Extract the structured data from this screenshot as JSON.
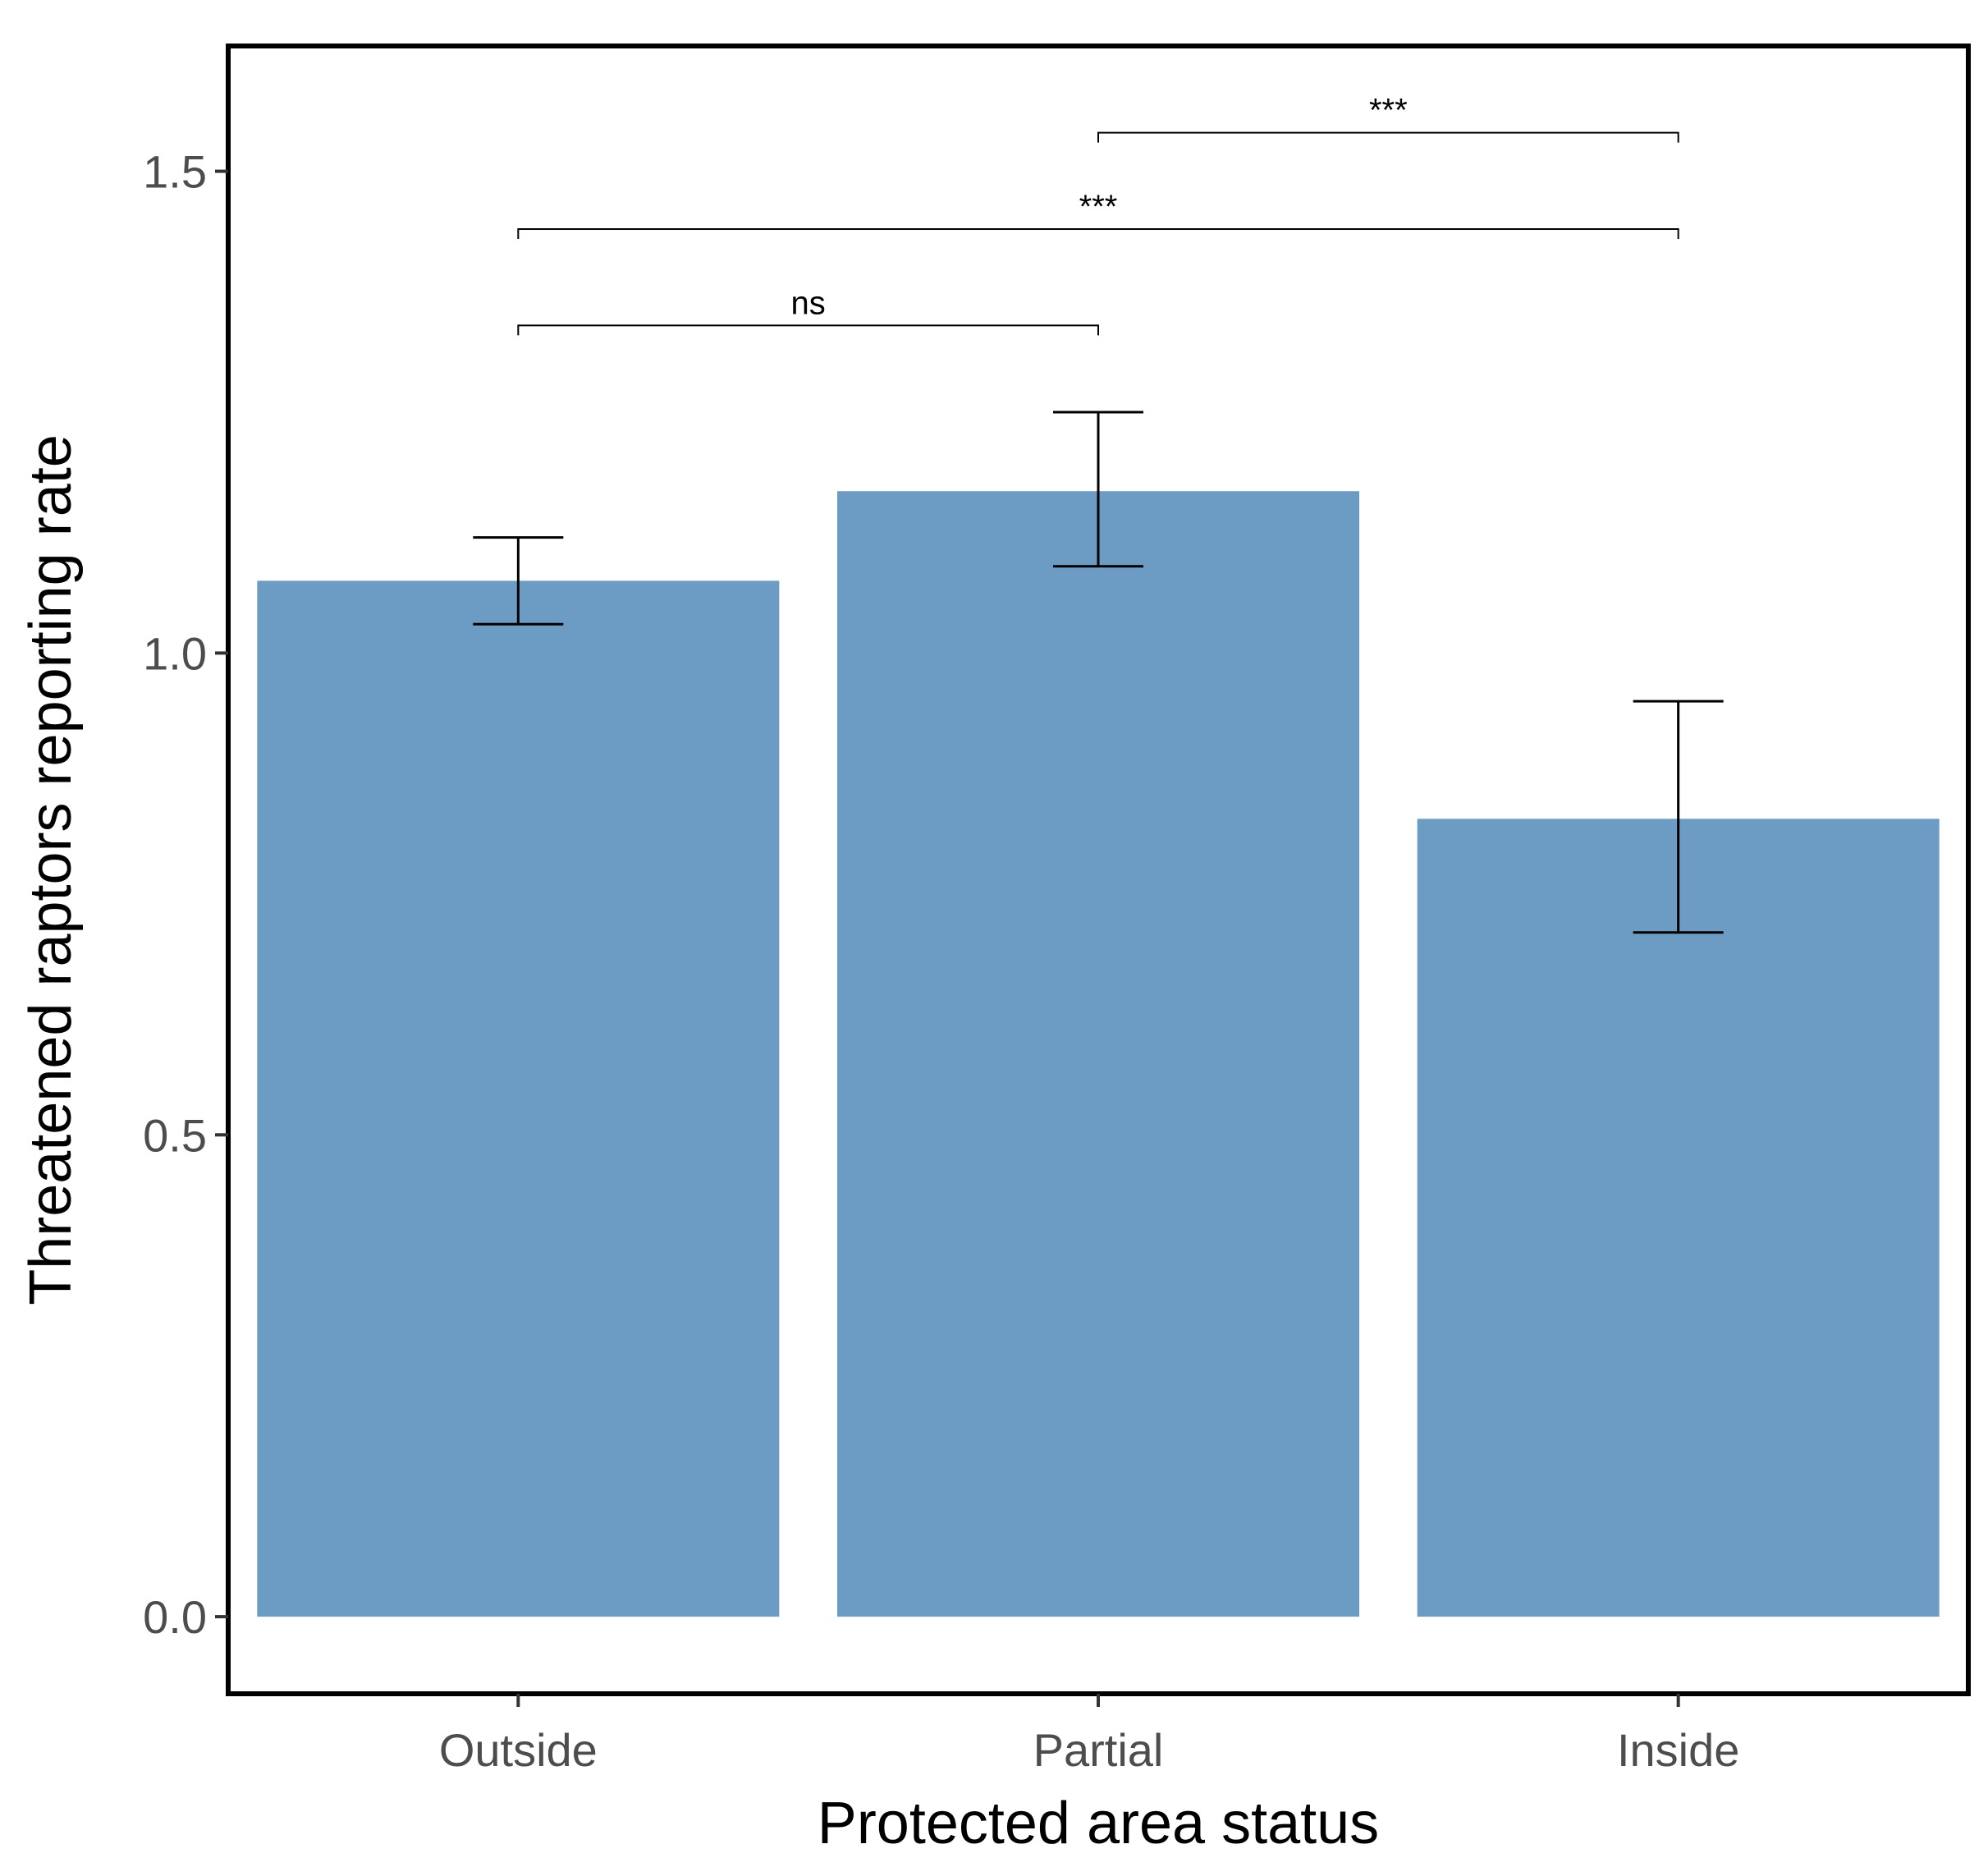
{
  "chart_data": {
    "type": "bar",
    "title": "",
    "xlabel": "Protected area status",
    "ylabel": "Threatened raptors reporting rate",
    "categories": [
      "Outside",
      "Partial",
      "Inside"
    ],
    "values": [
      1.075,
      1.168,
      0.828
    ],
    "error_bars": [
      {
        "low": 1.03,
        "high": 1.12
      },
      {
        "low": 1.09,
        "high": 1.25
      },
      {
        "low": 0.71,
        "high": 0.95
      }
    ],
    "ylim": [
      -0.08,
      1.63
    ],
    "yticks": [
      {
        "value": 0.0,
        "label": "0.0"
      },
      {
        "value": 0.5,
        "label": "0.5"
      },
      {
        "value": 1.0,
        "label": "1.0"
      },
      {
        "value": 1.5,
        "label": "1.5"
      }
    ],
    "bar_color": "#6c9bc4",
    "grid": false,
    "significance": [
      {
        "from": "Outside",
        "to": "Partial",
        "y": 1.34,
        "label": "ns"
      },
      {
        "from": "Outside",
        "to": "Inside",
        "y": 1.44,
        "label": "***"
      },
      {
        "from": "Partial",
        "to": "Inside",
        "y": 1.54,
        "label": "***"
      }
    ]
  }
}
